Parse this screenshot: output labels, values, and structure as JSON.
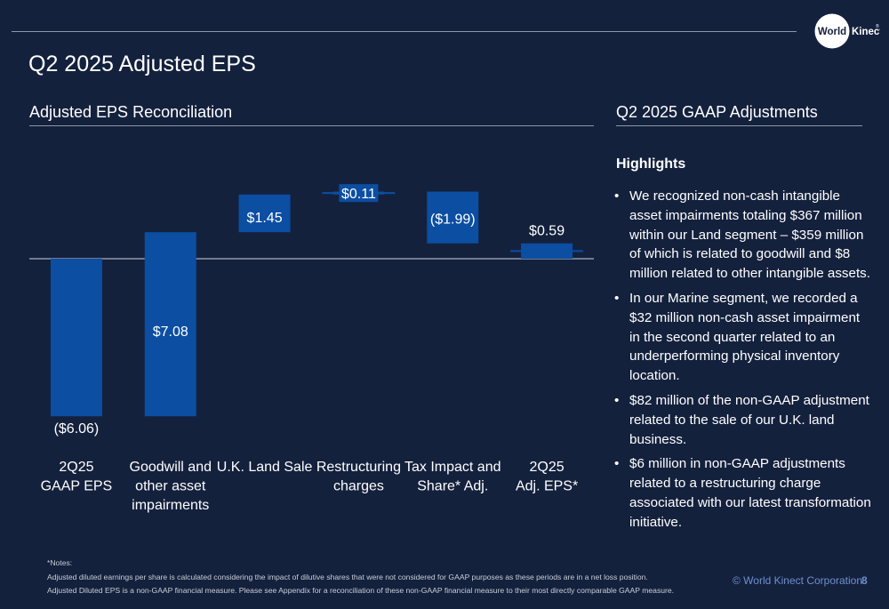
{
  "header": {
    "logo_text_a": "World",
    "logo_text_b": "Kinect",
    "logo_mark": "®"
  },
  "page_title": "Q2 2025 Adjusted EPS",
  "left_section_title": "Adjusted EPS Reconciliation",
  "right_section_title": "Q2 2025 GAAP Adjustments",
  "highlights": {
    "title": "Highlights",
    "items": [
      "We recognized non-cash intangible asset impairments totaling $367 million within our Land segment – $359 million of which is related to goodwill and $8 million related to other intangible assets.",
      "In our Marine segment, we recorded a $32 million non-cash asset impairment in the second quarter related to an underperforming physical inventory location.",
      "$82 million of the non-GAAP adjustment related to the sale of our U.K. land business.",
      "$6 million in non-GAAP adjustments related to a restructuring charge associated with our latest transformation initiative."
    ]
  },
  "notes": {
    "heading": "*Notes:",
    "line1": "Adjusted diluted earnings per share is calculated considering the impact of dilutive shares that were not considered for GAAP purposes as these periods are in a net loss position.",
    "line2": "Adjusted Diluted EPS is a non-GAAP financial measure. Please see Appendix for a reconciliation of these non-GAAP financial measure to their most directly comparable GAAP measure."
  },
  "footer": {
    "corporation": "© World Kinect Corporation",
    "page_number": "8"
  },
  "colors": {
    "background": "#14213d",
    "bar": "#0b4ea2",
    "rule": "#8f96a6",
    "footer_text": "#6f8fcf"
  },
  "chart_data": {
    "type": "bar",
    "subtype": "waterfall",
    "categories": [
      [
        "2Q25",
        "GAAP EPS"
      ],
      [
        "Goodwill and",
        "other asset",
        "impairments"
      ],
      [
        "U.K. Land Sale"
      ],
      [
        "Restructuring",
        "charges"
      ],
      [
        "Tax Impact and",
        "Share* Adj."
      ],
      [
        "2Q25",
        "Adj. EPS*"
      ]
    ],
    "values": [
      -6.06,
      7.08,
      1.45,
      0.11,
      -1.99,
      0.59
    ],
    "bar_kind": [
      "total",
      "delta",
      "delta",
      "delta",
      "delta",
      "total"
    ],
    "data_labels": [
      "($6.06)",
      "$7.08",
      "$1.45",
      "$0.11",
      "($1.99)",
      "$0.59"
    ],
    "label_position": [
      "below",
      "inside",
      "inside",
      "inside",
      "inside",
      "above"
    ],
    "ylim": [
      -6.6,
      3.05
    ],
    "baseline": 0,
    "grid": false,
    "legend": "none"
  }
}
